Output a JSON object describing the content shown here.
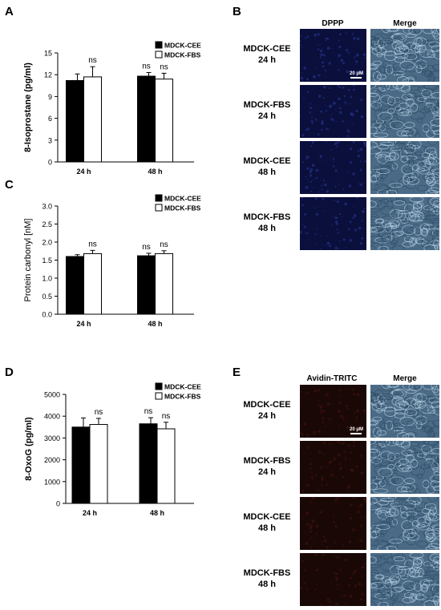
{
  "panels": {
    "A": {
      "letter": "A"
    },
    "B": {
      "letter": "B",
      "col1": "DPPP",
      "col2": "Merge",
      "scale": "20 μM",
      "rows": [
        {
          "l1": "MDCK-CEE",
          "l2": "24 h"
        },
        {
          "l1": "MDCK-FBS",
          "l2": "24 h"
        },
        {
          "l1": "MDCK-CEE",
          "l2": "48 h"
        },
        {
          "l1": "MDCK-FBS",
          "l2": "48 h"
        }
      ]
    },
    "C": {
      "letter": "C"
    },
    "D": {
      "letter": "D"
    },
    "E": {
      "letter": "E",
      "col1": "Avidin-TRITC",
      "col2": "Merge",
      "scale": "20 μM",
      "rows": [
        {
          "l1": "MDCK-CEE",
          "l2": "24 h"
        },
        {
          "l1": "MDCK-FBS",
          "l2": "24 h"
        },
        {
          "l1": "MDCK-CEE",
          "l2": "48 h"
        },
        {
          "l1": "MDCK-FBS",
          "l2": "48 h"
        }
      ]
    }
  },
  "colors": {
    "cee": "#000000",
    "fbs": "#ffffff",
    "dppp_bg": "#0a0f3c",
    "tritc_bg": "#1a0806",
    "merge_bg": "#4a6a86"
  },
  "chart_data": [
    {
      "id": "A",
      "type": "bar",
      "categories": [
        "24 h",
        "48 h"
      ],
      "series": [
        {
          "name": "MDCK-CEE",
          "values": [
            11.2,
            11.8
          ],
          "errors": [
            0.9,
            0.5
          ],
          "sig": [
            "",
            "ns"
          ]
        },
        {
          "name": "MDCK-FBS",
          "values": [
            11.7,
            11.4
          ],
          "errors": [
            1.4,
            0.8
          ],
          "sig": [
            "ns",
            "ns"
          ]
        }
      ],
      "ylabel": "8-Isoprostane (pg/ml)",
      "ylim": [
        0,
        15
      ],
      "yticks": [
        "0",
        "3",
        "6",
        "9",
        "12",
        "15"
      ],
      "legend": "top-right"
    },
    {
      "id": "C",
      "type": "bar",
      "categories": [
        "24 h",
        "48 h"
      ],
      "series": [
        {
          "name": "MDCK-CEE",
          "values": [
            1.6,
            1.62
          ],
          "errors": [
            0.05,
            0.07
          ],
          "sig": [
            "",
            "ns"
          ]
        },
        {
          "name": "MDCK-FBS",
          "values": [
            1.68,
            1.68
          ],
          "errors": [
            0.09,
            0.08
          ],
          "sig": [
            "ns",
            "ns"
          ]
        }
      ],
      "ylabel": "Protein carbonyl [nM]",
      "ylim": [
        0,
        3
      ],
      "yticks": [
        "0.0",
        "0.5",
        "1.0",
        "1.5",
        "2.0",
        "2.5",
        "3.0"
      ],
      "legend": "top-right"
    },
    {
      "id": "D",
      "type": "bar",
      "categories": [
        "24 h",
        "48 h"
      ],
      "series": [
        {
          "name": "MDCK-CEE",
          "values": [
            3500,
            3650
          ],
          "errors": [
            420,
            280
          ],
          "sig": [
            "",
            "ns"
          ]
        },
        {
          "name": "MDCK-FBS",
          "values": [
            3620,
            3420
          ],
          "errors": [
            280,
            300
          ],
          "sig": [
            "ns",
            "ns"
          ]
        }
      ],
      "ylabel": "8-OxoG (pg/ml)",
      "ylim": [
        0,
        5000
      ],
      "yticks": [
        "0",
        "1000",
        "2000",
        "3000",
        "4000",
        "5000"
      ],
      "legend": "top-right"
    }
  ]
}
